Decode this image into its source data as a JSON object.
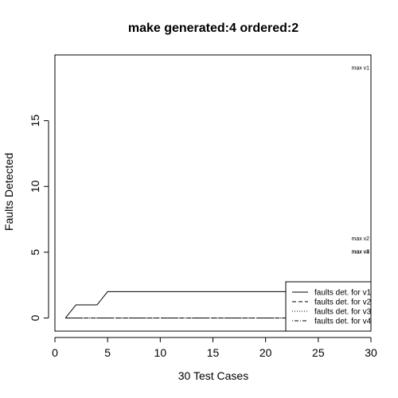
{
  "chart_data": {
    "type": "line",
    "title": "make generated:4 ordered:2",
    "xlabel": "30 Test Cases",
    "ylabel": "Faults Detected",
    "xlim": [
      0,
      30
    ],
    "ylim": [
      -1,
      20
    ],
    "xticks": [
      0,
      5,
      10,
      15,
      20,
      25,
      30
    ],
    "yticks": [
      0,
      5,
      10,
      15
    ],
    "grid": false,
    "legend_position": "bottom-right",
    "series": [
      {
        "name": "faults det. for v1",
        "dash": "solid",
        "x": [
          1,
          2,
          3,
          4,
          5,
          30
        ],
        "y": [
          0,
          1,
          1,
          1,
          2,
          2
        ]
      },
      {
        "name": "faults det. for v2",
        "dash": "dashed",
        "x": [
          1,
          30
        ],
        "y": [
          0,
          0
        ]
      },
      {
        "name": "faults det. for v3",
        "dash": "dotted",
        "x": [
          1,
          30
        ],
        "y": [
          0,
          0
        ]
      },
      {
        "name": "faults det. for v4",
        "dash": "dotdash",
        "x": [
          1,
          30
        ],
        "y": [
          0,
          0
        ]
      }
    ],
    "annotations": [
      {
        "text": "max v1",
        "x": 29.0,
        "y": 19
      },
      {
        "text": "max v2",
        "x": 29.0,
        "y": 6
      },
      {
        "text": "max v3",
        "x": 29.0,
        "y": 5
      },
      {
        "text": "max v4",
        "x": 29.0,
        "y": 5
      }
    ]
  }
}
